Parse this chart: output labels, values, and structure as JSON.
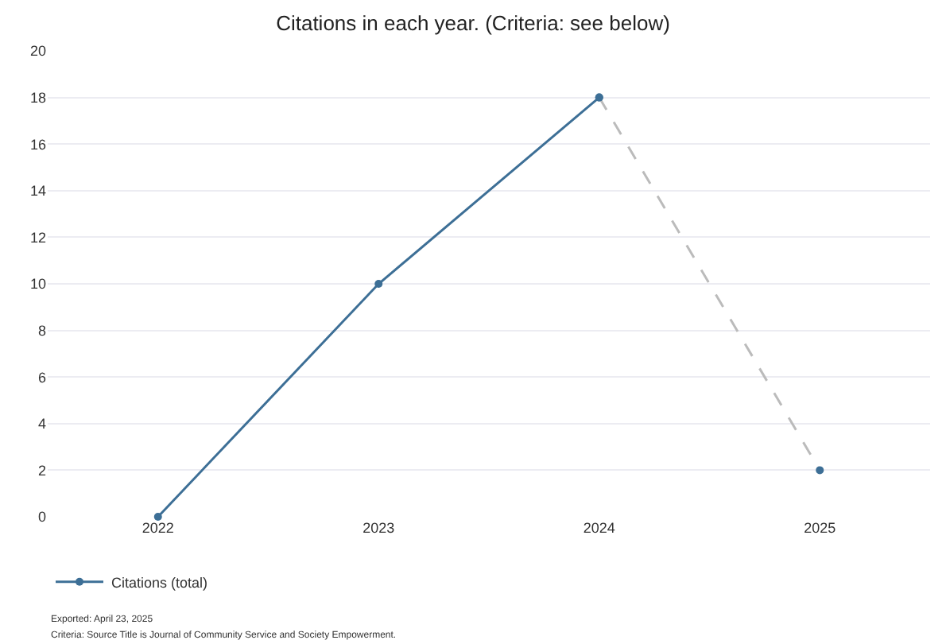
{
  "chart_data": {
    "type": "line",
    "title": "Citations in each year. (Criteria: see below)",
    "categories": [
      "2022",
      "2023",
      "2024",
      "2025"
    ],
    "series": [
      {
        "name": "Citations (total)",
        "color": "#3d6f96",
        "values": [
          0,
          10,
          18,
          null
        ]
      },
      {
        "color": "#bbbbbb",
        "line_style": "dashed",
        "colors": [
          null,
          null,
          "#3d6f96",
          "#3d6f96"
        ],
        "values": [
          null,
          null,
          18,
          2
        ]
      }
    ],
    "ylim": [
      0,
      20
    ],
    "yticks": [
      0,
      2,
      4,
      6,
      8,
      10,
      12,
      14,
      16,
      18,
      20
    ],
    "grid": "y",
    "marker": "circle",
    "line_style": "solid",
    "legend": "bottom left",
    "annotations": [
      "Exported: April 23, 2025",
      "Criteria: Source Title is Journal of Community Service and Society Empowerment."
    ]
  }
}
